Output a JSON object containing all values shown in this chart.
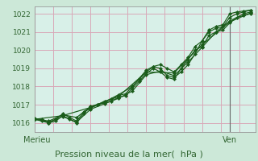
{
  "title": "",
  "xlabel": "Pression niveau de la mer(  hPa )",
  "ylabel": "",
  "bg_color": "#cce8d8",
  "plot_bg_color": "#d8f0e8",
  "grid_color": "#d8a8b8",
  "line_color": "#1a5c1a",
  "spine_color": "#aaaaaa",
  "tick_color": "#336633",
  "ylim": [
    1015.5,
    1022.4
  ],
  "xlim": [
    0,
    95
  ],
  "xtick_positions": [
    1,
    84
  ],
  "xtick_labels": [
    "Merieu",
    "Ven"
  ],
  "ytick_positions": [
    1016,
    1017,
    1018,
    1019,
    1020,
    1021,
    1022
  ],
  "ytick_labels": [
    "1016",
    "1017",
    "1018",
    "1019",
    "1020",
    "1021",
    "1022"
  ],
  "series": [
    [
      0,
      1016.2,
      3,
      1016.1,
      6,
      1016.0,
      9,
      1016.2,
      12,
      1016.5,
      15,
      1016.3,
      18,
      1016.1,
      21,
      1016.6,
      24,
      1016.8,
      27,
      1017.0,
      30,
      1017.2,
      33,
      1017.3,
      36,
      1017.5,
      39,
      1017.6,
      42,
      1018.0,
      45,
      1018.4,
      48,
      1018.8,
      51,
      1019.1,
      54,
      1019.0,
      57,
      1018.6,
      60,
      1018.5,
      63,
      1018.8,
      66,
      1019.2,
      69,
      1019.8,
      72,
      1020.5,
      75,
      1021.0,
      78,
      1021.2,
      81,
      1021.3,
      84,
      1021.8,
      87,
      1022.0,
      90,
      1022.1,
      93,
      1022.2
    ],
    [
      0,
      1016.2,
      3,
      1016.2,
      6,
      1016.0,
      9,
      1016.1,
      12,
      1016.4,
      15,
      1016.2,
      18,
      1016.0,
      21,
      1016.5,
      24,
      1016.9,
      27,
      1017.0,
      30,
      1017.1,
      33,
      1017.2,
      36,
      1017.4,
      39,
      1017.5,
      42,
      1017.9,
      45,
      1018.3,
      48,
      1018.7,
      51,
      1019.0,
      54,
      1018.8,
      57,
      1018.5,
      60,
      1018.4,
      63,
      1019.0,
      66,
      1019.5,
      69,
      1020.0,
      72,
      1020.2,
      75,
      1020.8,
      78,
      1021.0,
      81,
      1021.1,
      84,
      1021.5,
      87,
      1021.8,
      90,
      1021.9,
      93,
      1022.0
    ],
    [
      0,
      1016.2,
      6,
      1016.05,
      12,
      1016.35,
      18,
      1016.05,
      24,
      1016.75,
      30,
      1017.05,
      36,
      1017.35,
      42,
      1017.75,
      48,
      1018.65,
      54,
      1018.85,
      60,
      1018.6,
      66,
      1019.35,
      72,
      1020.15,
      78,
      1021.0,
      84,
      1021.6,
      90,
      1022.0,
      93,
      1022.1
    ],
    [
      0,
      1016.25,
      6,
      1016.1,
      12,
      1016.45,
      18,
      1016.3,
      24,
      1016.9,
      30,
      1017.15,
      36,
      1017.55,
      42,
      1018.0,
      48,
      1018.9,
      51,
      1019.1,
      54,
      1019.2,
      57,
      1019.0,
      60,
      1018.8,
      63,
      1019.2,
      66,
      1019.6,
      69,
      1020.2,
      72,
      1020.5,
      75,
      1021.1,
      78,
      1021.3,
      81,
      1021.4,
      84,
      1022.0,
      87,
      1022.1,
      90,
      1022.15,
      93,
      1022.2
    ],
    [
      0,
      1016.2,
      12,
      1016.4,
      24,
      1016.85,
      36,
      1017.45,
      48,
      1018.8,
      60,
      1018.75,
      72,
      1020.3,
      84,
      1021.55,
      93,
      1022.05
    ]
  ],
  "vline_x": 84,
  "vline_color": "#666666",
  "xlabel_fontsize": 8,
  "ytick_fontsize": 6.5,
  "xtick_fontsize": 7,
  "marker_size": 2.2,
  "line_width": 0.85
}
